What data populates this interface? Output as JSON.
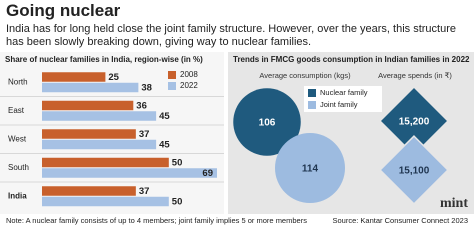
{
  "headline": "Going nuclear",
  "subtitle": "India has for long held close the joint family structure. However, over the years, this structure has been slowly breaking down, giving way to nuclear families.",
  "note": "Note: A nuclear family consists of up to 4 members; joint family implies 5 or more members",
  "source": "Source: Kantar Consumer Connect 2023",
  "logo": "mint",
  "chart_data": [
    {
      "type": "hbar",
      "title": "Share of nuclear families in India, region-wise (in %)",
      "categories": [
        "North",
        "East",
        "West",
        "South",
        "India"
      ],
      "series": [
        {
          "name": "2008",
          "color": "#c8602c",
          "values": [
            25,
            36,
            37,
            50,
            37
          ]
        },
        {
          "name": "2022",
          "color": "#a6c1e4",
          "values": [
            38,
            45,
            45,
            69,
            50
          ]
        }
      ]
    },
    {
      "type": "bubble",
      "title": "Trends in FMCG goods consumption in Indian families in 2022",
      "subtitle": "Average consumption (kgs)",
      "series": [
        {
          "name": "Nuclear family",
          "color": "#1f5a7e",
          "values": [
            106
          ]
        },
        {
          "name": "Joint family",
          "color": "#9dbbe0",
          "values": [
            114
          ]
        }
      ]
    },
    {
      "type": "diamond",
      "title": "Average spends (in ₹)",
      "values": [
        15200,
        15100
      ],
      "value_labels": [
        "15,200",
        "15,100"
      ],
      "colors": [
        "#1f5a7e",
        "#9dbbe0"
      ]
    }
  ]
}
